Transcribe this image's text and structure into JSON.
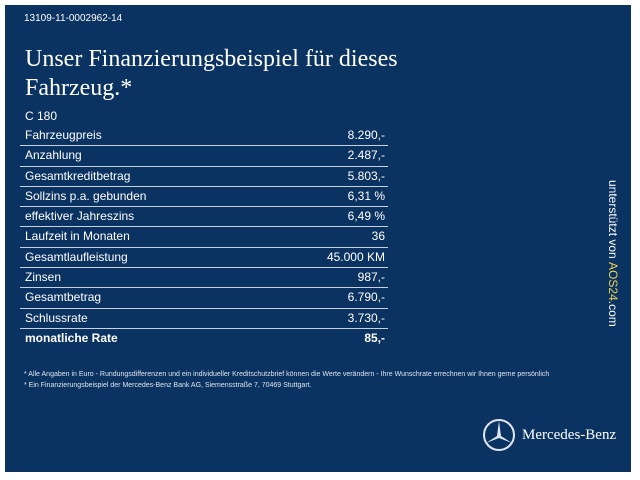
{
  "code": "13109-11-0002962-14",
  "title": "Unser Finanzierungsbeispiel für dieses Fahrzeug.*",
  "model": "C 180",
  "rows": [
    {
      "label": "Fahrzeugpreis",
      "value": "8.290,-"
    },
    {
      "label": "Anzahlung",
      "value": "2.487,-"
    },
    {
      "label": "Gesamtkreditbetrag",
      "value": "5.803,-"
    },
    {
      "label": "Sollzins p.a. gebunden",
      "value": "6,31 %"
    },
    {
      "label": "effektiver Jahreszins",
      "value": "6,49 %"
    },
    {
      "label": "Laufzeit in Monaten",
      "value": "36"
    },
    {
      "label": "Gesamtlaufleistung",
      "value": "45.000 KM"
    },
    {
      "label": "Zinsen",
      "value": "987,-"
    },
    {
      "label": "Gesamtbetrag",
      "value": "6.790,-"
    },
    {
      "label": "Schlussrate",
      "value": "3.730,-"
    },
    {
      "label": "monatliche Rate",
      "value": "85,-"
    }
  ],
  "notes": [
    "* Alle Angaben in Euro - Rundungsdifferenzen und ein individueller Kreditschutzbrief können die Werte verändern - Ihre Wunschrate errechnen wir Ihnen gerne persönlich",
    "* Ein Finanzierungsbeispiel der Mercedes-Benz Bank AG, Siemensstraße 7, 70469 Stuttgart."
  ],
  "side": {
    "prefix": "unterstützt von ",
    "brand": "AOS24",
    ".com": ".com"
  },
  "logo": "Mercedes-Benz"
}
